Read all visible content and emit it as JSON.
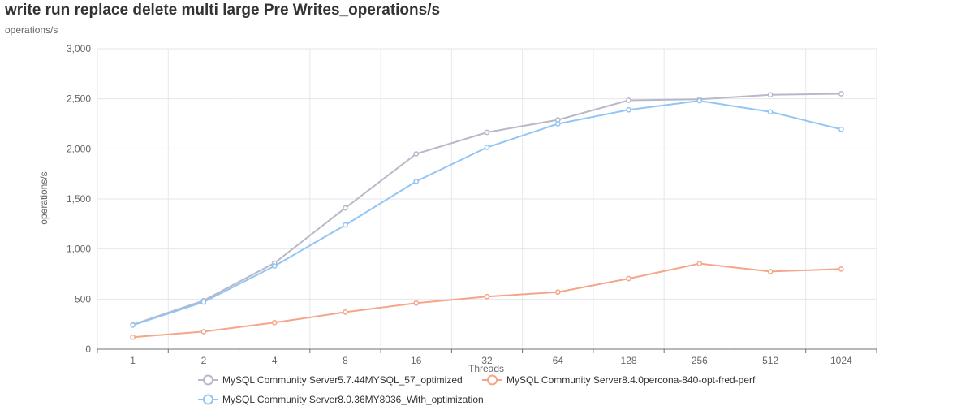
{
  "chart_data": {
    "type": "line",
    "title": "write run replace delete multi large Pre Writes_operations/s",
    "subtitle": "operations/s",
    "xlabel": "Threads",
    "ylabel": "operations/s",
    "categories": [
      "1",
      "2",
      "4",
      "8",
      "16",
      "32",
      "64",
      "128",
      "256",
      "512",
      "1024"
    ],
    "ylim": [
      0,
      3000
    ],
    "yticks": [
      0,
      500,
      1000,
      1500,
      2000,
      2500,
      3000
    ],
    "ytick_labels": [
      "0",
      "500",
      "1,000",
      "1,500",
      "2,000",
      "2,500",
      "3,000"
    ],
    "grid": true,
    "legend_position": "bottom",
    "series": [
      {
        "name": "MySQL Community Server5.7.44MYSQL_57_optimized",
        "color": "#b8b8c8",
        "values": [
          245,
          485,
          860,
          1410,
          1950,
          2165,
          2290,
          2485,
          2495,
          2540,
          2550
        ]
      },
      {
        "name": "MySQL Community Server8.4.0percona-840-opt-fred-perf",
        "color": "#f4a58a",
        "values": [
          120,
          175,
          265,
          370,
          460,
          525,
          570,
          705,
          855,
          775,
          800
        ]
      },
      {
        "name": "MySQL Community Server8.0.36MY8036_With_optimization",
        "color": "#92c5f5",
        "values": [
          240,
          470,
          830,
          1240,
          1675,
          2015,
          2250,
          2390,
          2480,
          2370,
          2195
        ]
      }
    ]
  }
}
